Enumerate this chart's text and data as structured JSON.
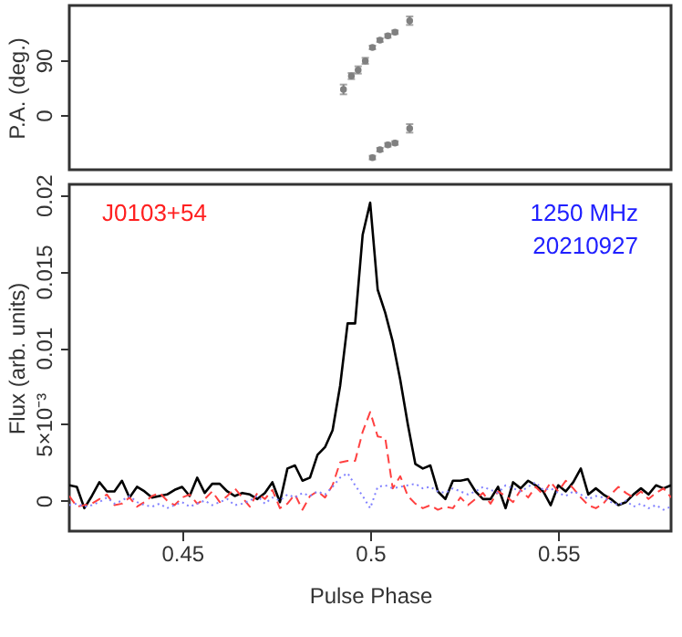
{
  "chart_data": [
    {
      "type": "scatter",
      "ylabel": "P.A. (deg.)",
      "xlim": [
        0.42,
        0.58
      ],
      "ylim": [
        -90,
        180
      ],
      "yticks": [
        0,
        90
      ],
      "tick_labels": "y",
      "grid": false,
      "marker": "circle",
      "series": [
        {
          "color": "#808080",
          "x": [
            0.4929,
            0.495,
            0.4968,
            0.4987,
            0.5006,
            0.5026,
            0.5047,
            0.5066,
            0.5105
          ],
          "values": [
            42,
            64,
            74,
            89,
            111,
            123,
            130,
            136,
            155
          ],
          "errors": [
            8,
            5,
            6,
            5,
            3,
            3,
            3,
            3,
            7
          ]
        },
        {
          "color": "#808080",
          "x": [
            0.5006,
            0.5026,
            0.5047,
            0.5066,
            0.5105
          ],
          "values": [
            -70,
            -57,
            -49,
            -46,
            -22
          ],
          "errors": [
            3,
            3,
            3,
            3,
            7
          ]
        }
      ]
    },
    {
      "type": "line",
      "xlabel": "Pulse Phase",
      "ylabel": "Flux (arb. units)",
      "xlim": [
        0.42,
        0.58
      ],
      "ylim": [
        -0.002,
        0.0207
      ],
      "xticks": [
        0.45,
        0.5,
        0.55
      ],
      "yticks": [
        0,
        {
          "value": 0.005,
          "label": "5×10⁻³"
        },
        0.01,
        0.015,
        0.02
      ],
      "grid": false,
      "annotations": [
        "J0103+54",
        "1250 MHz",
        "20210927"
      ],
      "x": [
        0.42,
        0.422,
        0.424,
        0.426,
        0.428,
        0.43,
        0.432,
        0.434,
        0.436,
        0.438,
        0.44,
        0.442,
        0.444,
        0.446,
        0.448,
        0.45,
        0.452,
        0.454,
        0.456,
        0.458,
        0.46,
        0.462,
        0.464,
        0.466,
        0.468,
        0.47,
        0.472,
        0.474,
        0.476,
        0.478,
        0.48,
        0.482,
        0.484,
        0.486,
        0.488,
        0.49,
        0.492,
        0.494,
        0.496,
        0.498,
        0.5,
        0.502,
        0.504,
        0.506,
        0.508,
        0.51,
        0.512,
        0.514,
        0.516,
        0.518,
        0.52,
        0.522,
        0.524,
        0.526,
        0.528,
        0.53,
        0.532,
        0.534,
        0.536,
        0.538,
        0.54,
        0.542,
        0.544,
        0.546,
        0.548,
        0.55,
        0.552,
        0.554,
        0.556,
        0.558,
        0.56,
        0.562,
        0.564,
        0.566,
        0.568,
        0.57,
        0.572,
        0.574,
        0.576,
        0.578,
        0.58
      ],
      "series": [
        {
          "color": "#000000",
          "line_style": "solid",
          "values": [
            0.001,
            0.0009,
            -0.0005,
            0.0003,
            0.0012,
            0.0006,
            0.0006,
            0.0013,
            0.0002,
            0.0009,
            0.0006,
            0.0002,
            0.0003,
            0.0004,
            0.0007,
            0.0009,
            0.0003,
            0.0015,
            0.0005,
            0.0011,
            0.0011,
            0.0006,
            0.0003,
            0.0005,
            0.0004,
            0.0001,
            0.0005,
            0.0012,
            -0.0001,
            0.0021,
            0.0023,
            0.0013,
            0.0015,
            0.003,
            0.0035,
            0.0046,
            0.0075,
            0.0116,
            0.0116,
            0.0174,
            0.0195,
            0.0138,
            0.0123,
            0.0104,
            0.0079,
            0.005,
            0.0024,
            0.0021,
            0.0023,
            0.0006,
            0.0001,
            0.0013,
            0.0013,
            0.0014,
            0.0006,
            0.0001,
            0.0001,
            0.0009,
            -0.0005,
            0.0012,
            0.0008,
            0.0013,
            0.001,
            0.0006,
            -0.0003,
            0.001,
            0.0006,
            0.0012,
            0.0021,
            0.0004,
            0.0008,
            0.0004,
            0.0001,
            -0.0003,
            -0.0001,
            0.0004,
            0.0008,
            0.0004,
            0.001,
            0.0008,
            0.001
          ]
        },
        {
          "color": "#ff4040",
          "line_style": "dashed",
          "values": [
            0.0003,
            -0.0004,
            -0.0003,
            -0.0002,
            0.0001,
            0.0004,
            -0.0003,
            -0.0002,
            0.0002,
            -0.0004,
            -0.0001,
            0.0003,
            0.0005,
            0.0,
            -0.0003,
            0.0002,
            0.0004,
            -0.0002,
            0.0001,
            0.0006,
            -0.0001,
            0.0003,
            0.0008,
            0.0002,
            -0.0004,
            0.0005,
            0.0001,
            0.0007,
            -0.0005,
            -0.0002,
            0.0004,
            -0.0006,
            0.0003,
            0.0006,
            0.0002,
            0.001,
            0.0025,
            0.0026,
            0.0026,
            0.0045,
            0.0058,
            0.0042,
            0.0041,
            0.0008,
            0.0016,
            0.0003,
            -0.0002,
            -0.0005,
            -0.0003,
            -0.0006,
            -0.0004,
            -0.0005,
            0.0002,
            -0.0003,
            0.0001,
            0.0005,
            -0.0002,
            0.0006,
            0.0003,
            -0.0001,
            0.0007,
            0.0002,
            0.0009,
            0.0004,
            0.0012,
            0.0006,
            0.0013,
            0.0008,
            0.0002,
            -0.0003,
            -0.0005,
            -0.0002,
            0.0004,
            0.0009,
            0.0005,
            0.0002,
            0.0006,
            0.0001,
            0.0005,
            0.0008,
            0.0002
          ]
        },
        {
          "color": "#8080ff",
          "line_style": "dotted",
          "values": [
            -0.0003,
            -0.0002,
            -0.0004,
            -0.0003,
            -0.0001,
            0.0002,
            -0.0002,
            0.0,
            0.0003,
            -0.0001,
            -0.0003,
            -0.0004,
            -0.0002,
            -0.0005,
            -0.0003,
            -0.0001,
            -0.0004,
            -0.0002,
            0.0,
            -0.0003,
            -0.0001,
            0.0001,
            -0.0003,
            -0.0002,
            0.0,
            0.0003,
            -0.0002,
            0.0002,
            0.0,
            0.0004,
            0.0002,
            0.0005,
            0.0003,
            0.0006,
            0.0004,
            0.0009,
            0.0015,
            0.0018,
            0.001,
            0.0003,
            -0.0005,
            0.0009,
            0.001,
            0.0008,
            0.0009,
            0.001,
            0.0011,
            0.0008,
            0.0009,
            0.0006,
            0.0005,
            0.0008,
            0.0006,
            0.0004,
            0.0006,
            0.0009,
            0.0007,
            0.0005,
            0.001,
            0.0008,
            0.0006,
            0.0009,
            0.0012,
            0.0007,
            0.0008,
            0.0005,
            0.0003,
            0.0006,
            0.0004,
            0.0001,
            0.0003,
            0.0002,
            -0.0001,
            -0.0003,
            0.0,
            -0.0004,
            -0.0002,
            -0.0005,
            -0.0003,
            -0.0006,
            -0.0004
          ]
        }
      ]
    }
  ]
}
